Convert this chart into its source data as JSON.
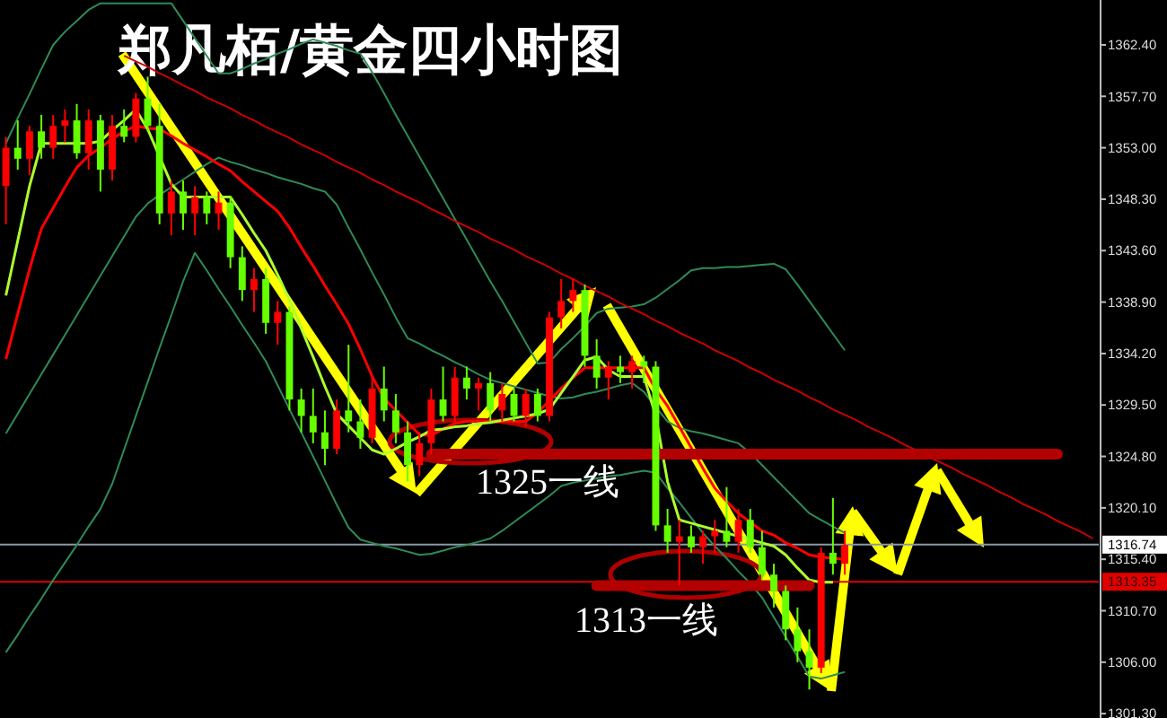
{
  "chart_data": {
    "type": "candlestick",
    "title": "郑凡栢/黄金四小时图",
    "categories": [
      null,
      null,
      null,
      null,
      null,
      null,
      null,
      null,
      null,
      null,
      null,
      null,
      null,
      null,
      null,
      null,
      null,
      null,
      null,
      null,
      null,
      null,
      null,
      null,
      null,
      null,
      null,
      null,
      null,
      null,
      null,
      null,
      null,
      null,
      null,
      null,
      null,
      null,
      null,
      null,
      null,
      null,
      null,
      null,
      null,
      null,
      null,
      null,
      null,
      null,
      null,
      null,
      null,
      null,
      null,
      null,
      null,
      null,
      null,
      null,
      null,
      null,
      null,
      null,
      null,
      null,
      null,
      null,
      null,
      null,
      null,
      null,
      null,
      null,
      null,
      null,
      null,
      null,
      null,
      null,
      null,
      null,
      null,
      null,
      null,
      null,
      null,
      null,
      null,
      null,
      null,
      null,
      null
    ],
    "ohlc": [
      [
        1349.5,
        1354,
        1346,
        1353
      ],
      [
        1353,
        1355.5,
        1351,
        1352
      ],
      [
        1352,
        1355,
        1350.5,
        1354.5
      ],
      [
        1354.5,
        1356,
        1352,
        1353
      ],
      [
        1353,
        1356,
        1352,
        1355
      ],
      [
        1355,
        1356.5,
        1353.5,
        1355.5
      ],
      [
        1355.5,
        1357,
        1352,
        1352.5
      ],
      [
        1352.5,
        1356.5,
        1351,
        1355.5
      ],
      [
        1355.5,
        1356,
        1349,
        1351
      ],
      [
        1351,
        1356,
        1350,
        1355
      ],
      [
        1355,
        1356.5,
        1353.5,
        1354
      ],
      [
        1354,
        1358,
        1353.5,
        1357.5
      ],
      [
        1357.5,
        1359.5,
        1354.5,
        1355
      ],
      [
        1355,
        1357,
        1346,
        1347
      ],
      [
        1347,
        1350,
        1345,
        1349
      ],
      [
        1349,
        1350,
        1345.5,
        1347
      ],
      [
        1347,
        1349.5,
        1345,
        1348.5
      ],
      [
        1348.5,
        1349,
        1346,
        1347
      ],
      [
        1347,
        1349,
        1345.5,
        1348
      ],
      [
        1348,
        1348.5,
        1342,
        1343
      ],
      [
        1343,
        1344,
        1339,
        1340
      ],
      [
        1340,
        1342,
        1338,
        1341
      ],
      [
        1341,
        1342,
        1336,
        1337
      ],
      [
        1337,
        1339,
        1335,
        1338
      ],
      [
        1338,
        1338.5,
        1329,
        1330
      ],
      [
        1330,
        1331,
        1327,
        1328.5
      ],
      [
        1328.5,
        1331,
        1326,
        1327
      ],
      [
        1327,
        1329,
        1324,
        1325.5
      ],
      [
        1325.5,
        1330,
        1325,
        1329
      ],
      [
        1329,
        1335,
        1327,
        1328
      ],
      [
        1328,
        1330,
        1325.5,
        1326.5
      ],
      [
        1326.5,
        1332,
        1326,
        1331
      ],
      [
        1331,
        1333,
        1328,
        1329
      ],
      [
        1329,
        1330.5,
        1326,
        1327
      ],
      [
        1327,
        1328,
        1322.5,
        1324
      ],
      [
        1324,
        1327,
        1323,
        1326
      ],
      [
        1326,
        1331,
        1325,
        1330
      ],
      [
        1330,
        1333,
        1328,
        1328.5
      ],
      [
        1328.5,
        1333,
        1328,
        1332
      ],
      [
        1332,
        1333,
        1330,
        1331
      ],
      [
        1331,
        1332,
        1329,
        1331.5
      ],
      [
        1331.5,
        1332.5,
        1328,
        1329
      ],
      [
        1329,
        1331.5,
        1328,
        1330.5
      ],
      [
        1330.5,
        1331,
        1328,
        1328.5
      ],
      [
        1328.5,
        1331,
        1327.5,
        1330.5
      ],
      [
        1330.5,
        1331,
        1328,
        1328.5
      ],
      [
        1328.5,
        1338,
        1328,
        1337.5
      ],
      [
        1337.5,
        1341,
        1336.5,
        1339
      ],
      [
        1339,
        1341,
        1338,
        1340
      ],
      [
        1340,
        1340.5,
        1333,
        1334
      ],
      [
        1334,
        1335.5,
        1331,
        1332
      ],
      [
        1332,
        1333.5,
        1330,
        1333
      ],
      [
        1333,
        1334,
        1331.5,
        1332.5
      ],
      [
        1332.5,
        1334,
        1331,
        1333.5
      ],
      [
        1333.5,
        1334,
        1331.5,
        1333
      ],
      [
        1333,
        1333.5,
        1318,
        1318.5
      ],
      [
        1318.5,
        1320,
        1316,
        1317
      ],
      [
        1317,
        1319,
        1313,
        1317.5
      ],
      [
        1317.5,
        1318.5,
        1316,
        1316.5
      ],
      [
        1316.5,
        1318,
        1315,
        1317.5
      ],
      [
        1317.5,
        1319,
        1316,
        1318
      ],
      [
        1318,
        1322,
        1316.5,
        1317
      ],
      [
        1317,
        1320,
        1316,
        1319
      ],
      [
        1319,
        1320,
        1316,
        1316.5
      ],
      [
        1316.5,
        1318,
        1313.5,
        1314
      ],
      [
        1314,
        1315,
        1311,
        1312.5
      ],
      [
        1312.5,
        1313,
        1308,
        1309
      ],
      [
        1309,
        1311,
        1306,
        1307
      ],
      [
        1307,
        1309,
        1303.5,
        1305.5
      ],
      [
        1305.5,
        1316.5,
        1305,
        1316
      ],
      [
        1316,
        1321,
        1314,
        1315
      ],
      [
        1315,
        1318,
        1314,
        1316.7
      ],
      null,
      null,
      null,
      null,
      null,
      null,
      null,
      null,
      null,
      null,
      null,
      null,
      null,
      null,
      null,
      null,
      null,
      null,
      null,
      null,
      null
    ],
    "colors": [
      "#ff0000",
      "#66ff00",
      "#ff0000",
      "#66ff00",
      "#ff0000",
      "#ff0000",
      "#66ff00",
      "#ff0000",
      "#66ff00",
      "#ff0000",
      "#66ff00",
      "#ff0000",
      "#66ff00",
      "#66ff00",
      "#ff0000",
      "#66ff00",
      "#ff0000",
      "#66ff00",
      "#ff0000",
      "#66ff00",
      "#66ff00",
      "#ff0000",
      "#66ff00",
      "#ff0000",
      "#66ff00",
      "#66ff00",
      "#66ff00",
      "#66ff00",
      "#ff0000",
      "#66ff00",
      "#66ff00",
      "#ff0000",
      "#66ff00",
      "#66ff00",
      "#66ff00",
      "#ff0000",
      "#ff0000",
      "#66ff00",
      "#ff0000",
      "#66ff00",
      "#ff0000",
      "#66ff00",
      "#ff0000",
      "#66ff00",
      "#ff0000",
      "#66ff00",
      "#ff0000",
      "#ff0000",
      "#ff0000",
      "#66ff00",
      "#66ff00",
      "#ff0000",
      "#66ff00",
      "#ff0000",
      "#66ff00",
      "#66ff00",
      "#66ff00",
      "#ff0000",
      "#66ff00",
      "#ff0000",
      "#ff0000",
      "#66ff00",
      "#ff0000",
      "#66ff00",
      "#66ff00",
      "#66ff00",
      "#66ff00",
      "#66ff00",
      "#66ff00",
      "#ff0000",
      "#66ff00",
      "#ff0000",
      null,
      null,
      null,
      null,
      null,
      null,
      null,
      null,
      null,
      null,
      null,
      null,
      null,
      null,
      null,
      null,
      null,
      null,
      null,
      null,
      null
    ],
    "series": [
      {
        "type": "line",
        "color": "#2e8b57",
        "values": [
          1353.4,
          1355.7,
          1357.9,
          1360.2,
          1362.4,
          1363.6,
          1364.6,
          1365.6,
          1366.2,
          1366.2,
          1366.2,
          1366.2,
          1366.2,
          1366.2,
          1366.2,
          1364.6,
          1363.0,
          1361.4,
          1359.8,
          1359.8,
          1360.2,
          1360.7,
          1361.1,
          1361.6,
          1362.0,
          1362.5,
          1362.9,
          1362.6,
          1362.3,
          1361.9,
          1361.6,
          1359.9,
          1358.0,
          1356.0,
          1354.1,
          1352.2,
          1350.3,
          1348.4,
          1346.5,
          1344.6,
          1342.7,
          1340.8,
          1339.0,
          1337.1,
          1335.2,
          1333.3,
          1333.4,
          1334.6,
          1335.6,
          1336.7,
          1337.9,
          1338.3,
          1338.4,
          1338.5,
          1338.7,
          1339.3,
          1340.1,
          1340.9,
          1341.8,
          1342.0,
          1342.0,
          1342.1,
          1342.1,
          1342.2,
          1342.3,
          1342.4,
          1341.9,
          1340.5,
          1339.0,
          1337.5,
          1336.0,
          1334.5,
          null,
          null,
          null,
          null,
          null,
          null,
          null,
          null,
          null,
          null,
          null,
          null,
          null,
          null,
          null,
          null,
          null,
          null,
          null,
          null,
          null
        ]
      },
      {
        "type": "line",
        "color": "#2e8b57",
        "values": [
          1326.9,
          1328.7,
          1330.5,
          1332.3,
          1334.1,
          1335.9,
          1337.7,
          1339.5,
          1341.3,
          1343.1,
          1344.9,
          1346.7,
          1347.9,
          1348.7,
          1349.4,
          1350.1,
          1350.8,
          1351.5,
          1352.1,
          1351.7,
          1351.4,
          1351.0,
          1350.7,
          1350.3,
          1350.0,
          1349.7,
          1349.3,
          1349.0,
          1347.8,
          1345.7,
          1343.7,
          1341.6,
          1339.6,
          1337.5,
          1335.6,
          1335.1,
          1334.5,
          1334.0,
          1333.4,
          1332.9,
          1332.3,
          1331.8,
          1331.5,
          1331.2,
          1330.9,
          1330.6,
          1330.3,
          1330.1,
          1330.2,
          1330.5,
          1330.7,
          1331.0,
          1331.3,
          1331.5,
          1330.7,
          1329.3,
          1328.0,
          1327.4,
          1327.1,
          1326.9,
          1326.6,
          1326.3,
          1326.0,
          1325.1,
          1324.0,
          1322.9,
          1321.8,
          1320.7,
          1319.6,
          1319.0,
          1318.4,
          1317.8,
          null,
          null,
          null,
          null,
          null,
          null,
          null,
          null,
          null,
          null,
          null,
          null,
          null,
          null,
          null,
          null,
          null,
          null,
          null,
          null,
          null
        ]
      },
      {
        "type": "line",
        "color": "#2e8b57",
        "values": [
          1306.9,
          1308.5,
          1310.2,
          1311.8,
          1313.5,
          1315.1,
          1316.7,
          1318.4,
          1320.0,
          1322.3,
          1325.4,
          1328.5,
          1331.6,
          1334.7,
          1337.7,
          1340.8,
          1343.4,
          1341.8,
          1340.1,
          1338.5,
          1336.8,
          1335.2,
          1333.5,
          1331.3,
          1329.1,
          1327.0,
          1324.8,
          1322.6,
          1320.4,
          1318.3,
          1317.2,
          1316.9,
          1316.6,
          1316.4,
          1316.1,
          1315.8,
          1315.9,
          1316.2,
          1316.5,
          1316.7,
          1317.0,
          1317.3,
          1318.0,
          1318.8,
          1319.6,
          1320.4,
          1321.2,
          1322.1,
          1322.4,
          1322.6,
          1322.8,
          1323.0,
          1323.1,
          1323.3,
          1323.5,
          1323.3,
          1321.9,
          1320.6,
          1319.2,
          1317.8,
          1316.6,
          1315.5,
          1314.3,
          1313.2,
          1311.9,
          1310.1,
          1308.3,
          1306.5,
          1304.7,
          1304.5,
          1304.8,
          1305.1,
          null,
          null,
          null,
          null,
          null,
          null,
          null,
          null,
          null,
          null,
          null,
          null,
          null,
          null,
          null,
          null,
          null,
          null,
          null,
          null,
          null
        ]
      },
      {
        "type": "line",
        "color": "#ff0000",
        "values": [
          1333.7,
          1337.8,
          1341.9,
          1345.6,
          1347.5,
          1349.4,
          1351.2,
          1352.3,
          1353.0,
          1353.8,
          1354.5,
          1355.0,
          1354.8,
          1354.7,
          1354.1,
          1353.4,
          1352.8,
          1352.2,
          1351.5,
          1350.9,
          1349.9,
          1349.0,
          1348.1,
          1347.2,
          1345.7,
          1343.9,
          1342.2,
          1340.4,
          1338.7,
          1336.9,
          1334.6,
          1332.1,
          1330.1,
          1329.0,
          1327.9,
          1326.8,
          1326.7,
          1327.3,
          1327.8,
          1328.0,
          1328.0,
          1328.0,
          1328.0,
          1328.0,
          1328.0,
          1328.8,
          1329.9,
          1331.0,
          1332.0,
          1332.9,
          1332.9,
          1332.9,
          1332.9,
          1332.9,
          1332.9,
          1330.9,
          1329.4,
          1327.5,
          1325.6,
          1323.7,
          1321.9,
          1320.7,
          1319.6,
          1318.8,
          1318.0,
          1317.6,
          1316.9,
          1316.4,
          1315.8,
          1315.6,
          1315.5,
          1315.4,
          null,
          null,
          null,
          null,
          null,
          null,
          null,
          null,
          null,
          null,
          null,
          null,
          null,
          null,
          null,
          null,
          null,
          null,
          null,
          null,
          null
        ]
      },
      {
        "type": "line",
        "color": "#adff2f",
        "values": [
          1339.5,
          1344.5,
          1349.5,
          1353.4,
          1353.4,
          1353.4,
          1353.4,
          1353.4,
          1353.6,
          1354.6,
          1355.5,
          1356.5,
          1354.7,
          1352.2,
          1349.7,
          1348.5,
          1348.5,
          1348.5,
          1348.5,
          1348.5,
          1346.9,
          1345.2,
          1343.6,
          1341.4,
          1339.1,
          1336.5,
          1333.9,
          1331.2,
          1328.7,
          1327.6,
          1326.5,
          1325.4,
          1325.0,
          1325.5,
          1326.1,
          1326.6,
          1327.2,
          1327.3,
          1327.5,
          1327.6,
          1327.8,
          1327.9,
          1328.1,
          1328.3,
          1328.5,
          1328.7,
          1329.1,
          1330.6,
          1332.1,
          1333.6,
          1333.9,
          1332.7,
          1332.1,
          1332.1,
          1332.1,
          1328.5,
          1322.5,
          1319.0,
          1318.7,
          1318.4,
          1318.1,
          1317.8,
          1317.5,
          1317.2,
          1316.9,
          1316.6,
          1315.8,
          1314.6,
          1313.5,
          1313.3,
          1313.3,
          null,
          null,
          null,
          null,
          null,
          null,
          null,
          null,
          null,
          null,
          null,
          null,
          null,
          null,
          null,
          null,
          null,
          null,
          null,
          null,
          null,
          null
        ]
      },
      {
        "type": "line",
        "color": "#cc0000",
        "values": [
          null,
          null,
          null,
          null,
          null,
          null,
          null,
          null,
          null,
          null,
          1361.4,
          1360.9,
          1360.4,
          1359.8,
          1359.3,
          1358.7,
          1358.2,
          1357.6,
          1357.1,
          1356.6,
          1356.0,
          1355.5,
          1354.9,
          1354.4,
          1353.9,
          1353.3,
          1352.8,
          1352.3,
          1351.7,
          1351.2,
          1350.7,
          1350.1,
          1349.6,
          1349.0,
          1348.5,
          1348.0,
          1347.4,
          1346.9,
          1346.3,
          1345.8,
          1345.3,
          1344.7,
          1344.2,
          1343.7,
          1343.1,
          1342.6,
          1342.1,
          1341.5,
          1341.0,
          1340.4,
          1339.9,
          1339.4,
          1338.8,
          1338.3,
          1337.8,
          1337.2,
          1336.7,
          1336.1,
          1335.6,
          1335.1,
          1334.5,
          1334.0,
          1333.5,
          1332.9,
          1332.4,
          1331.8,
          1331.3,
          1330.8,
          1330.2,
          1329.7,
          1329.1,
          1328.6,
          1328.1,
          1327.5,
          1327.0,
          1326.5,
          1325.9,
          1325.4,
          1324.8,
          1324.3,
          1323.8,
          1323.2,
          1322.7,
          1322.2,
          1321.6,
          1321.1,
          1320.5,
          1320.0,
          1319.5,
          1318.9,
          1318.4,
          1317.9,
          1317.3
        ]
      },
      {
        "type": "line",
        "color": "#b30000",
        "values": [
          null,
          null,
          null,
          null,
          null,
          null,
          null,
          null,
          null,
          null,
          null,
          null,
          null,
          null,
          null,
          null,
          null,
          null,
          null,
          null,
          null,
          null,
          null,
          null,
          null,
          null,
          null,
          null,
          null,
          null,
          null,
          null,
          null,
          null,
          null,
          null,
          1325,
          1325,
          1325,
          1325,
          1325,
          1325,
          1325,
          1325,
          1325,
          1325,
          1325,
          1325,
          1325,
          1325,
          1325,
          1325,
          1325,
          1325,
          1325,
          1325,
          1325,
          1325,
          1325,
          1325,
          1325,
          1325,
          1325,
          1325,
          1325,
          1325,
          1325,
          1325,
          1325,
          1325,
          1325,
          1325,
          1325,
          1325,
          1325,
          1325,
          1325,
          1325,
          1325,
          1325,
          1325,
          1325,
          1325,
          1325,
          1325,
          1325,
          1325,
          1325,
          1325,
          1325,
          null,
          null,
          null
        ]
      },
      {
        "type": "line",
        "color": "#b30000",
        "values": [
          null,
          null,
          null,
          null,
          null,
          null,
          null,
          null,
          null,
          null,
          null,
          null,
          null,
          null,
          null,
          null,
          null,
          null,
          null,
          null,
          null,
          null,
          null,
          null,
          null,
          null,
          null,
          null,
          null,
          null,
          null,
          null,
          null,
          null,
          null,
          null,
          null,
          null,
          null,
          null,
          null,
          null,
          null,
          null,
          null,
          null,
          null,
          null,
          null,
          null,
          1313,
          1313,
          1313,
          1313,
          1313,
          1313,
          1313,
          1313,
          1313,
          1313,
          1313,
          1313,
          1313,
          1313,
          1313,
          1313,
          1313,
          1313,
          1313,
          null,
          null,
          null,
          null,
          null,
          null,
          null,
          null,
          null,
          null,
          null,
          null,
          null,
          null,
          null,
          null,
          null,
          null,
          null,
          null,
          null,
          null,
          null,
          null
        ]
      }
    ],
    "ref_lines": [
      {
        "axis": "y",
        "value": 1316.74,
        "label": "1316.74",
        "color": "#8a9aa8"
      },
      {
        "axis": "y",
        "value": 1313.35,
        "label": "1313.35",
        "color": "#e00000"
      }
    ],
    "annotations": [
      {
        "text": "1325一线",
        "y": 1325
      },
      {
        "text": "1313一线",
        "y": 1313
      }
    ],
    "ylim": [
      1300.9,
      1366.5
    ],
    "yticks": [
      {
        "value": 1362.4,
        "label": "1362.40"
      },
      {
        "value": 1357.7,
        "label": "1357.70"
      },
      {
        "value": 1353.0,
        "label": "1353.00"
      },
      {
        "value": 1348.3,
        "label": "1348.30"
      },
      {
        "value": 1343.6,
        "label": "1343.60"
      },
      {
        "value": 1338.9,
        "label": "1338.90"
      },
      {
        "value": 1334.2,
        "label": "1334.20"
      },
      {
        "value": 1329.5,
        "label": "1329.50"
      },
      {
        "value": 1324.8,
        "label": "1324.80"
      },
      {
        "value": 1320.1,
        "label": "1320.10"
      },
      {
        "value": 1315.4,
        "label": "1315.40"
      },
      {
        "value": 1310.7,
        "label": "1310.70"
      },
      {
        "value": 1306.0,
        "label": "1306.00"
      },
      {
        "value": 1301.3,
        "label": "1301.30"
      }
    ],
    "tick_labels": "y"
  }
}
